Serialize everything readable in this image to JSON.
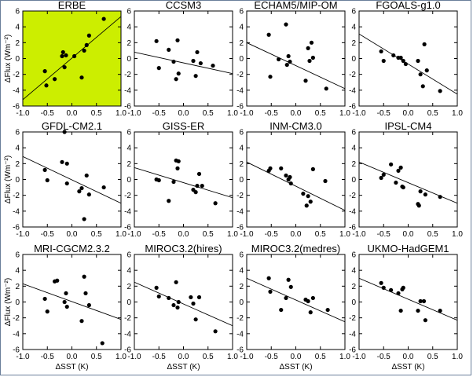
{
  "figure": {
    "ylabel": "ΔFlux (Wm⁻²)",
    "xlabel": "ΔSST (K)",
    "xlim": [
      -1.0,
      1.0
    ],
    "ylim": [
      -6,
      6
    ],
    "xticks": [
      -1.0,
      -0.5,
      0.0,
      0.5,
      1.0
    ],
    "xtick_labels": [
      "-1.0",
      "-0.5",
      "0.0",
      "0.5",
      "1.0"
    ],
    "yticks": [
      -6,
      -4,
      -2,
      0,
      2,
      4,
      6
    ],
    "ytick_labels": [
      "-6",
      "-4",
      "-2",
      "0",
      "2",
      "4",
      "6"
    ],
    "highlight_bg": "#ccee00",
    "axis_color": "#000000"
  },
  "chart_data": [
    {
      "type": "scatter",
      "title": "ERBE",
      "highlight": true,
      "points": [
        [
          -0.55,
          -1.6
        ],
        [
          -0.52,
          -3.4
        ],
        [
          -0.35,
          -2.6
        ],
        [
          -0.2,
          0.3
        ],
        [
          -0.18,
          0.8
        ],
        [
          -0.15,
          -1.1
        ],
        [
          -0.12,
          0.4
        ],
        [
          0.05,
          0.3
        ],
        [
          0.2,
          -2.4
        ],
        [
          0.25,
          1.0
        ],
        [
          0.3,
          1.7
        ],
        [
          0.35,
          2.9
        ],
        [
          0.65,
          5.0
        ]
      ],
      "fit": {
        "y_at_xmin": -5.2,
        "y_at_xmax": 5.3
      }
    },
    {
      "type": "scatter",
      "title": "CCSM3",
      "points": [
        [
          -0.55,
          2.2
        ],
        [
          -0.5,
          -1.2
        ],
        [
          -0.3,
          1.1
        ],
        [
          -0.2,
          -0.4
        ],
        [
          -0.15,
          -2.6
        ],
        [
          -0.12,
          2.3
        ],
        [
          -0.1,
          -1.9
        ],
        [
          0.2,
          -0.3
        ],
        [
          0.25,
          -2.2
        ],
        [
          0.28,
          0.8
        ],
        [
          0.35,
          -0.6
        ],
        [
          0.6,
          -0.9
        ]
      ],
      "fit": {
        "y_at_xmin": 0.8,
        "y_at_xmax": -1.9
      }
    },
    {
      "type": "scatter",
      "title": "ECHAM5/MIP-OM",
      "points": [
        [
          -0.55,
          3.0
        ],
        [
          -0.52,
          -2.3
        ],
        [
          -0.35,
          -0.1
        ],
        [
          -0.2,
          4.3
        ],
        [
          -0.18,
          -0.8
        ],
        [
          -0.15,
          0.3
        ],
        [
          -0.12,
          -0.4
        ],
        [
          0.2,
          -2.8
        ],
        [
          0.25,
          1.3
        ],
        [
          0.28,
          -0.3
        ],
        [
          0.32,
          2.0
        ],
        [
          0.35,
          0.1
        ],
        [
          0.62,
          -3.8
        ]
      ],
      "fit": {
        "y_at_xmin": 2.0,
        "y_at_xmax": -3.8
      }
    },
    {
      "type": "scatter",
      "title": "FGOALS-g1.0",
      "points": [
        [
          -0.55,
          0.9
        ],
        [
          -0.5,
          -0.3
        ],
        [
          -0.3,
          0.4
        ],
        [
          -0.2,
          0.1
        ],
        [
          -0.15,
          0.1
        ],
        [
          -0.1,
          -0.3
        ],
        [
          -0.05,
          -0.7
        ],
        [
          0.2,
          -0.3
        ],
        [
          0.25,
          -2.0
        ],
        [
          0.3,
          -3.5
        ],
        [
          0.33,
          1.8
        ],
        [
          0.38,
          -1.5
        ],
        [
          0.65,
          -4.1
        ]
      ],
      "fit": {
        "y_at_xmin": 3.1,
        "y_at_xmax": -4.5
      }
    },
    {
      "type": "scatter",
      "title": "GFDL-CM2.1",
      "points": [
        [
          -0.55,
          1.2
        ],
        [
          -0.5,
          -0.1
        ],
        [
          -0.2,
          2.2
        ],
        [
          -0.15,
          6.0
        ],
        [
          -0.1,
          2.0
        ],
        [
          -0.1,
          -0.5
        ],
        [
          0.15,
          -1.5
        ],
        [
          0.2,
          -1.1
        ],
        [
          0.25,
          -5.0
        ],
        [
          0.3,
          0.5
        ],
        [
          0.35,
          -1.9
        ],
        [
          0.65,
          -1.0
        ]
      ],
      "fit": {
        "y_at_xmin": 2.9,
        "y_at_xmax": -3.0
      }
    },
    {
      "type": "scatter",
      "title": "GISS-ER",
      "points": [
        [
          -0.55,
          0.0
        ],
        [
          -0.5,
          -0.1
        ],
        [
          -0.3,
          -2.7
        ],
        [
          -0.2,
          -0.3
        ],
        [
          -0.15,
          2.4
        ],
        [
          -0.12,
          1.4
        ],
        [
          -0.1,
          2.3
        ],
        [
          0.2,
          -1.3
        ],
        [
          0.25,
          -1.6
        ],
        [
          0.28,
          -0.8
        ],
        [
          0.32,
          0.7
        ],
        [
          0.38,
          -0.8
        ],
        [
          0.65,
          -3.0
        ]
      ],
      "fit": {
        "y_at_xmin": 1.5,
        "y_at_xmax": -2.3
      }
    },
    {
      "type": "scatter",
      "title": "INM-CM3.0",
      "points": [
        [
          -0.55,
          1.1
        ],
        [
          -0.52,
          1.4
        ],
        [
          -0.3,
          1.4
        ],
        [
          -0.2,
          0.5
        ],
        [
          -0.15,
          0.0
        ],
        [
          -0.12,
          0.3
        ],
        [
          -0.1,
          -0.5
        ],
        [
          0.15,
          -1.8
        ],
        [
          0.22,
          -3.3
        ],
        [
          0.25,
          -2.1
        ],
        [
          0.3,
          -2.8
        ],
        [
          0.35,
          1.3
        ],
        [
          0.6,
          -0.2
        ]
      ],
      "fit": {
        "y_at_xmin": 2.2,
        "y_at_xmax": -3.9
      }
    },
    {
      "type": "scatter",
      "title": "IPSL-CM4",
      "points": [
        [
          -0.55,
          0.2
        ],
        [
          -0.5,
          0.6
        ],
        [
          -0.35,
          1.9
        ],
        [
          -0.25,
          -0.4
        ],
        [
          -0.2,
          1.1
        ],
        [
          -0.15,
          1.5
        ],
        [
          -0.12,
          -0.9
        ],
        [
          -0.1,
          -1.0
        ],
        [
          0.2,
          -3.1
        ],
        [
          0.22,
          -3.3
        ],
        [
          0.25,
          -1.5
        ],
        [
          0.35,
          -1.9
        ],
        [
          0.65,
          -2.2
        ]
      ],
      "fit": {
        "y_at_xmin": 2.2,
        "y_at_xmax": -3.0
      }
    },
    {
      "type": "scatter",
      "title": "MRI-CGCM2.3.2",
      "points": [
        [
          -0.55,
          0.4
        ],
        [
          -0.5,
          -1.2
        ],
        [
          -0.35,
          2.6
        ],
        [
          -0.3,
          2.7
        ],
        [
          -0.15,
          0.0
        ],
        [
          -0.12,
          1.1
        ],
        [
          -0.1,
          -0.6
        ],
        [
          0.2,
          -2.4
        ],
        [
          0.25,
          3.2
        ],
        [
          0.28,
          1.1
        ],
        [
          0.35,
          -0.4
        ],
        [
          0.62,
          -5.2
        ]
      ],
      "fit": {
        "y_at_xmin": 2.3,
        "y_at_xmax": -2.2
      }
    },
    {
      "type": "scatter",
      "title": "MIROC3.2(hires)",
      "points": [
        [
          -0.55,
          1.8
        ],
        [
          -0.5,
          0.7
        ],
        [
          -0.3,
          0.5
        ],
        [
          -0.2,
          -0.4
        ],
        [
          -0.15,
          2.5
        ],
        [
          -0.12,
          -0.7
        ],
        [
          -0.1,
          0.0
        ],
        [
          0.15,
          0.6
        ],
        [
          0.2,
          -0.2
        ],
        [
          0.25,
          -2.2
        ],
        [
          0.32,
          0.6
        ],
        [
          0.65,
          -3.7
        ]
      ],
      "fit": {
        "y_at_xmin": 2.5,
        "y_at_xmax": -3.0
      }
    },
    {
      "type": "scatter",
      "title": "MIROC3.2(medres)",
      "points": [
        [
          -0.55,
          3.0
        ],
        [
          -0.52,
          1.3
        ],
        [
          -0.3,
          -1.0
        ],
        [
          -0.2,
          0.5
        ],
        [
          -0.15,
          2.8
        ],
        [
          -0.1,
          1.9
        ],
        [
          0.2,
          0.3
        ],
        [
          0.25,
          0.1
        ],
        [
          0.3,
          -1.3
        ],
        [
          0.35,
          0.5
        ],
        [
          0.65,
          -1.0
        ]
      ],
      "fit": {
        "y_at_xmin": 3.0,
        "y_at_xmax": -2.5
      }
    },
    {
      "type": "scatter",
      "title": "UKMO-HadGEM1",
      "points": [
        [
          -0.55,
          2.4
        ],
        [
          -0.5,
          1.8
        ],
        [
          -0.35,
          1.5
        ],
        [
          -0.2,
          1.1
        ],
        [
          -0.15,
          -1.1
        ],
        [
          -0.12,
          1.6
        ],
        [
          -0.1,
          1.8
        ],
        [
          0.2,
          -1.1
        ],
        [
          0.25,
          0.1
        ],
        [
          0.32,
          0.1
        ],
        [
          0.35,
          -2.3
        ],
        [
          0.65,
          -1.1
        ]
      ],
      "fit": {
        "y_at_xmin": 3.0,
        "y_at_xmax": -2.3
      }
    }
  ]
}
